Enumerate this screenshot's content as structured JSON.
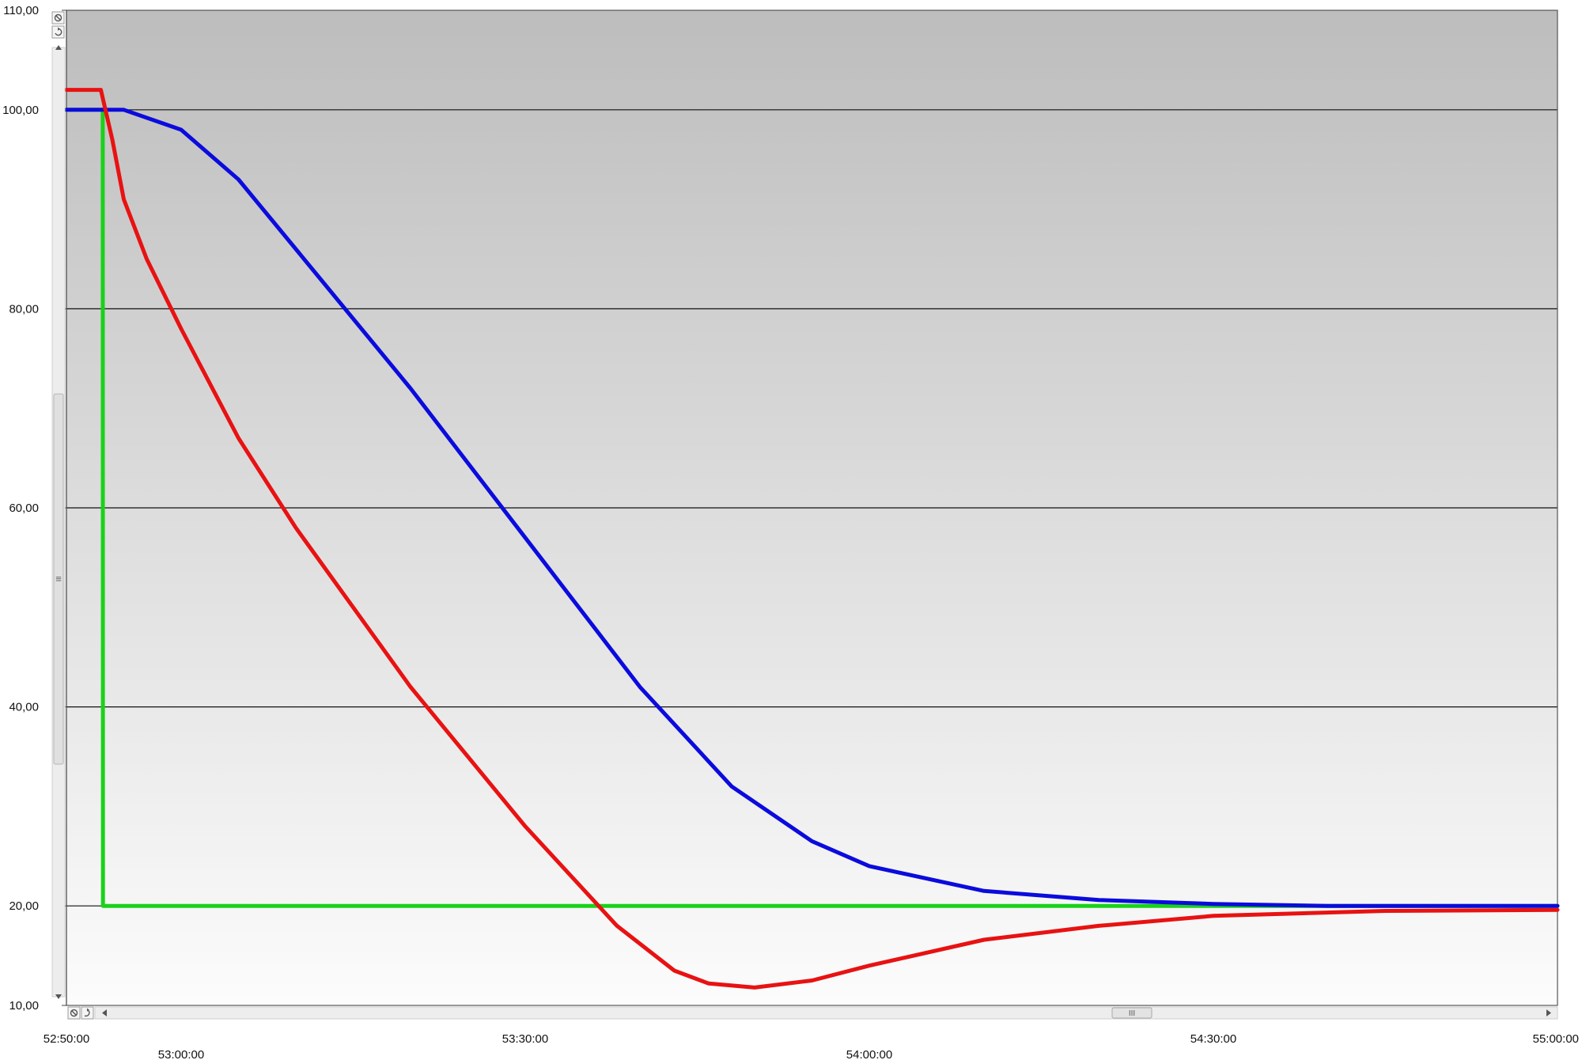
{
  "chart_data": {
    "type": "line",
    "title": "",
    "xlabel": "",
    "ylabel": "",
    "ylim": [
      10,
      110
    ],
    "xlim": [
      "52:50:00",
      "55:00:00"
    ],
    "y_ticks": [
      "110,00",
      "100,00",
      "80,00",
      "60,00",
      "40,00",
      "20,00",
      "10,00"
    ],
    "x_ticks": [
      "52:50:00",
      "53:00:00",
      "53:30:00",
      "54:00:00",
      "54:30:00",
      "55:00:00"
    ],
    "grid": "horizontal",
    "legend": "none",
    "series": [
      {
        "color": "#19d219",
        "x": [
          "52:50:00",
          "52:53:10",
          "52:53:11",
          "55:00:00"
        ],
        "y": [
          100,
          100,
          20,
          20
        ]
      },
      {
        "color": "#0b0bdd",
        "x": [
          "52:50:00",
          "52:55:00",
          "53:00:00",
          "53:05:00",
          "53:10:00",
          "53:20:00",
          "53:30:00",
          "53:40:00",
          "53:48:00",
          "53:55:00",
          "54:00:00",
          "54:10:00",
          "54:20:00",
          "54:30:00",
          "54:40:00",
          "55:00:00"
        ],
        "y": [
          100,
          100,
          98,
          93,
          86,
          72,
          57,
          42,
          32,
          26.5,
          24,
          21.5,
          20.6,
          20.2,
          20,
          20
        ]
      },
      {
        "color": "#e81212",
        "x": [
          "52:50:00",
          "52:53:00",
          "52:54:00",
          "52:55:00",
          "52:57:00",
          "53:00:00",
          "53:05:00",
          "53:10:00",
          "53:20:00",
          "53:30:00",
          "53:38:00",
          "53:43:00",
          "53:46:00",
          "53:50:00",
          "53:55:00",
          "54:00:00",
          "54:10:00",
          "54:20:00",
          "54:30:00",
          "54:45:00",
          "55:00:00"
        ],
        "y": [
          102,
          102,
          97,
          91,
          85,
          78,
          67,
          58,
          42,
          28,
          18,
          13.5,
          12.2,
          11.8,
          12.5,
          14,
          16.6,
          18,
          19,
          19.5,
          19.6
        ]
      }
    ]
  },
  "controls": {
    "zoom_reset_icon": "zoom-reset-icon",
    "undo_icon": "undo-icon",
    "scroll_grip": "III",
    "y_scroll_grip": "≡"
  }
}
